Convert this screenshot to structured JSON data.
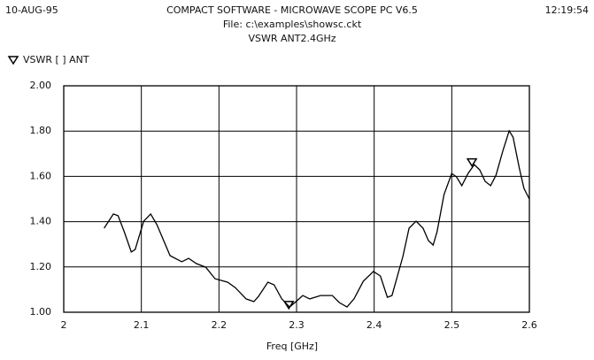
{
  "chart_data": {
    "type": "line",
    "date": "10-AUG-95",
    "time": "12:19:54",
    "title": "COMPACT SOFTWARE - MICROWAVE SCOPE PC V6.5",
    "subtitle": "File: c:\\examples\\showsc.ckt",
    "subtitle2": "VSWR ANT2.4GHz",
    "x_label": "Freq [GHz]",
    "x": [
      2.052,
      2.064,
      2.07,
      2.078,
      2.087,
      2.092,
      2.103,
      2.112,
      2.12,
      2.137,
      2.152,
      2.161,
      2.171,
      2.183,
      2.195,
      2.211,
      2.221,
      2.235,
      2.245,
      2.251,
      2.263,
      2.271,
      2.281,
      2.291,
      2.298,
      2.308,
      2.317,
      2.331,
      2.346,
      2.355,
      2.365,
      2.374,
      2.386,
      2.399,
      2.408,
      2.417,
      2.423,
      2.437,
      2.445,
      2.454,
      2.463,
      2.47,
      2.476,
      2.481,
      2.49,
      2.5,
      2.506,
      2.513,
      2.521,
      2.529,
      2.536,
      2.543,
      2.55,
      2.557,
      2.566,
      2.574,
      2.579,
      2.587,
      2.593,
      2.6
    ],
    "series": [
      {
        "name": "VSWR [ ] ANT",
        "color": "#000000",
        "values": [
          1.371,
          1.434,
          1.426,
          1.355,
          1.266,
          1.277,
          1.402,
          1.434,
          1.387,
          1.25,
          1.223,
          1.238,
          1.215,
          1.199,
          1.148,
          1.133,
          1.109,
          1.059,
          1.047,
          1.07,
          1.133,
          1.121,
          1.059,
          1.023,
          1.043,
          1.074,
          1.059,
          1.074,
          1.074,
          1.043,
          1.023,
          1.059,
          1.137,
          1.18,
          1.16,
          1.066,
          1.074,
          1.246,
          1.371,
          1.402,
          1.371,
          1.316,
          1.297,
          1.355,
          1.52,
          1.613,
          1.598,
          1.559,
          1.613,
          1.652,
          1.629,
          1.578,
          1.559,
          1.605,
          1.715,
          1.801,
          1.773,
          1.637,
          1.547,
          1.5
        ]
      }
    ],
    "markers": {
      "x": [
        2.29,
        2.526
      ],
      "y": [
        1.02,
        1.65
      ]
    },
    "xlim": [
      2,
      2.6
    ],
    "xticks": [
      2,
      2.1,
      2.2,
      2.3,
      2.4,
      2.5,
      2.6
    ],
    "ylim": [
      1,
      2
    ],
    "yticks": [
      {
        "value": 1,
        "label": "1.00"
      },
      {
        "value": 1.2,
        "label": "1.20"
      },
      {
        "value": 1.4,
        "label": "1.40"
      },
      {
        "value": 1.6,
        "label": "1.60"
      },
      {
        "value": 1.8,
        "label": "1.80"
      },
      {
        "value": 2,
        "label": "2.00"
      }
    ],
    "grid": true
  }
}
